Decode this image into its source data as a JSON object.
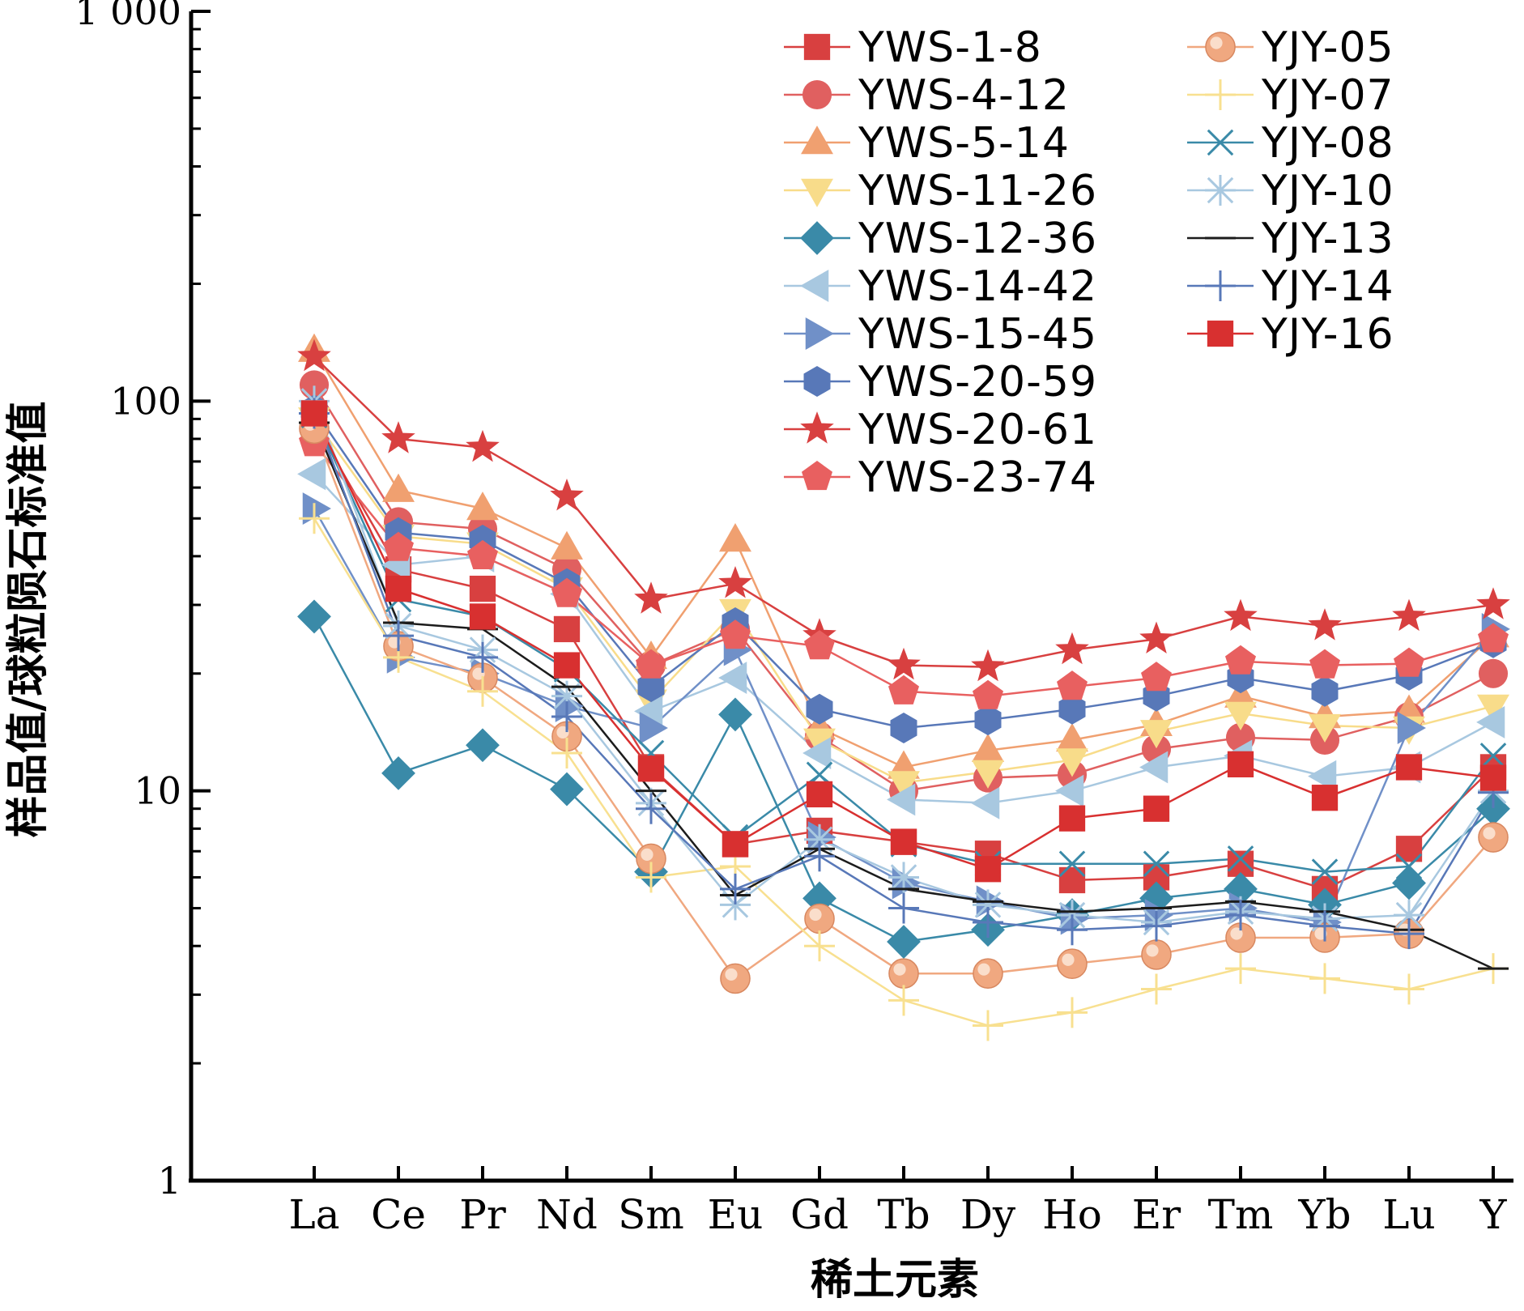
{
  "chart_data": {
    "type": "line",
    "title": "",
    "xlabel": "稀土元素",
    "ylabel": "样品值/球粒陨石标准值",
    "yscale": "log",
    "ylim": [
      1,
      1000
    ],
    "yticks": [
      1,
      10,
      100,
      1000
    ],
    "ytick_labels": [
      "1",
      "10",
      "100",
      "1 000"
    ],
    "categories": [
      "La",
      "Ce",
      "Pr",
      "Nd",
      "Sm",
      "Eu",
      "Gd",
      "Tb",
      "Dy",
      "Ho",
      "Er",
      "Tm",
      "Yb",
      "Lu",
      "Y"
    ],
    "grid": false,
    "legend_position": "top-right",
    "series": [
      {
        "name": "YWS-1-8",
        "color": "#d84040",
        "marker": "square",
        "values": [
          88,
          37,
          33,
          26,
          11.5,
          7.3,
          7.9,
          7.4,
          6.9,
          5.9,
          6.0,
          6.5,
          5.6,
          7.1,
          11.5
        ]
      },
      {
        "name": "YWS-4-12",
        "color": "#e06060",
        "marker": "circle",
        "values": [
          110,
          49,
          47,
          37,
          21,
          26,
          13.8,
          10.0,
          10.8,
          11.0,
          12.8,
          13.7,
          13.5,
          15.5,
          20
        ]
      },
      {
        "name": "YWS-5-14",
        "color": "#f0a070",
        "marker": "triangle-up",
        "values": [
          135,
          59,
          53,
          42,
          22,
          44,
          14.5,
          11.5,
          12.7,
          13.5,
          14.8,
          17.5,
          15.5,
          16,
          25
        ]
      },
      {
        "name": "YWS-11-26",
        "color": "#f8dc8a",
        "marker": "triangle-down",
        "values": [
          90,
          45,
          43,
          33,
          17,
          29,
          13.5,
          10.5,
          11.2,
          12.0,
          14.2,
          15.8,
          14.7,
          14.5,
          16.5
        ]
      },
      {
        "name": "YWS-12-36",
        "color": "#3a8aa8",
        "marker": "diamond",
        "values": [
          28,
          11.1,
          13.1,
          10.1,
          6.2,
          15.7,
          5.3,
          4.1,
          4.4,
          4.8,
          5.3,
          5.6,
          5.1,
          5.8,
          9.0
        ]
      },
      {
        "name": "YWS-14-42",
        "color": "#a8c8e0",
        "marker": "triangle-left",
        "values": [
          65,
          38,
          40,
          32,
          16,
          19.5,
          12.5,
          9.5,
          9.3,
          10.0,
          11.5,
          12.3,
          10.9,
          11.5,
          15
        ]
      },
      {
        "name": "YWS-15-45",
        "color": "#7090c8",
        "marker": "triangle-right",
        "values": [
          53,
          22,
          20,
          16.5,
          14.5,
          23,
          7.6,
          5.8,
          5.2,
          4.7,
          4.8,
          5.0,
          4.6,
          14.5,
          26
        ]
      },
      {
        "name": "YWS-20-59",
        "color": "#5878b8",
        "marker": "hexagon",
        "values": [
          95,
          46,
          44,
          34,
          18.5,
          27,
          16.2,
          14.5,
          15.2,
          16.2,
          17.5,
          19.5,
          18.0,
          19.8,
          24
        ]
      },
      {
        "name": "YWS-20-61",
        "color": "#d84040",
        "marker": "star",
        "values": [
          130,
          80,
          76,
          57,
          31,
          34,
          25,
          21,
          20.8,
          23,
          24.5,
          28,
          26.5,
          28,
          30
        ]
      },
      {
        "name": "YWS-23-74",
        "color": "#e86060",
        "marker": "pentagon",
        "values": [
          78,
          42,
          40,
          32,
          21,
          25,
          23.5,
          18,
          17.5,
          18.5,
          19.5,
          21.5,
          21,
          21.2,
          24.5
        ]
      },
      {
        "name": "YJY-05",
        "color": "#f0a880",
        "marker": "circle-ball",
        "values": [
          85,
          23.5,
          19.5,
          13.8,
          6.7,
          3.3,
          4.7,
          3.4,
          3.4,
          3.6,
          3.8,
          4.2,
          4.2,
          4.3,
          7.6
        ]
      },
      {
        "name": "YJY-07",
        "color": "#f8e090",
        "marker": "plus",
        "values": [
          50,
          22,
          18,
          12.5,
          6.0,
          6.4,
          4.0,
          2.9,
          2.5,
          2.7,
          3.1,
          3.5,
          3.3,
          3.1,
          3.5
        ]
      },
      {
        "name": "YJY-08",
        "color": "#3a8aa8",
        "marker": "x",
        "values": [
          92,
          31,
          28,
          20.5,
          12.5,
          7.6,
          11.0,
          7.3,
          6.5,
          6.5,
          6.5,
          6.7,
          6.2,
          6.4,
          12.3
        ]
      },
      {
        "name": "YJY-10",
        "color": "#a8c8e0",
        "marker": "asterisk",
        "values": [
          100,
          26.5,
          23,
          17.5,
          9.3,
          5.1,
          7.5,
          6.0,
          5.1,
          4.8,
          4.6,
          4.9,
          4.7,
          4.8,
          10
        ]
      },
      {
        "name": "YJY-13",
        "color": "#1c1c1c",
        "marker": "hline",
        "values": [
          88,
          27,
          26,
          18.5,
          10,
          5.4,
          7.1,
          5.6,
          5.2,
          4.9,
          5.0,
          5.2,
          4.9,
          4.4,
          3.5
        ]
      },
      {
        "name": "YJY-14",
        "color": "#5878b8",
        "marker": "plus",
        "values": [
          93,
          25,
          22,
          15.5,
          9.0,
          5.6,
          6.8,
          5.0,
          4.6,
          4.4,
          4.5,
          4.8,
          4.5,
          4.3,
          9.9
        ]
      },
      {
        "name": "YJY-16",
        "color": "#d83030",
        "marker": "square",
        "values": [
          93,
          33,
          28,
          21,
          11.4,
          7.3,
          9.8,
          7.4,
          6.3,
          8.5,
          9.0,
          11.7,
          9.6,
          11.5,
          10.8
        ]
      }
    ]
  }
}
